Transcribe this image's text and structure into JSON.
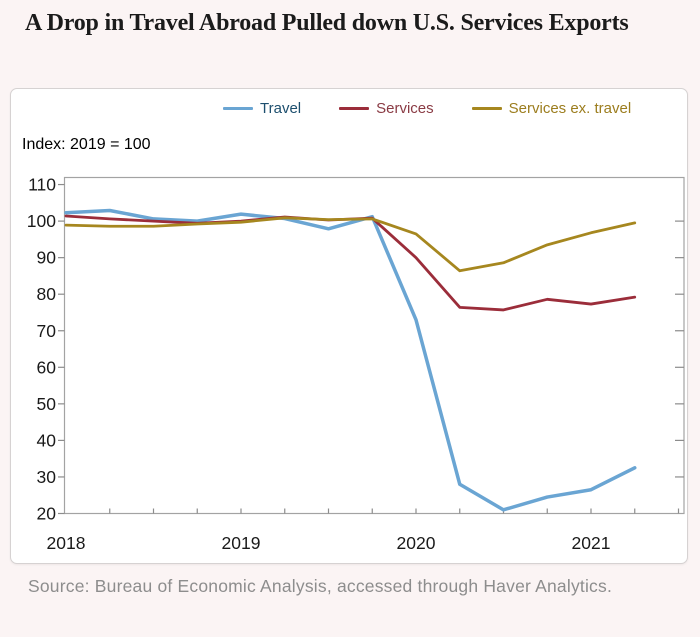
{
  "page": {
    "title": "A Drop in Travel Abroad Pulled down U.S. Services Exports",
    "source": "Source: Bureau of Economic Analysis, accessed through Haver Analytics."
  },
  "chart": {
    "index_label": "Index: 2019 = 100",
    "legend": [
      {
        "label": "Travel",
        "color": "#6aa5d3",
        "label_color": "#1d4f6e"
      },
      {
        "label": "Services",
        "color": "#9b2d3a",
        "label_color": "#8a3b44"
      },
      {
        "label": "Services ex. travel",
        "color": "#a6871f",
        "label_color": "#9c7d1e"
      }
    ]
  },
  "chart_data": {
    "type": "line",
    "title": "A Drop in Travel Abroad Pulled down U.S. Services Exports",
    "subtitle": "Index: 2019 = 100",
    "x_quarters": [
      "2018Q1",
      "2018Q2",
      "2018Q3",
      "2018Q4",
      "2019Q1",
      "2019Q2",
      "2019Q3",
      "2019Q4",
      "2020Q1",
      "2020Q2",
      "2020Q3",
      "2020Q4",
      "2021Q1",
      "2021Q2"
    ],
    "series": [
      {
        "name": "Travel",
        "color": "#6aa5d3",
        "values": [
          102.3,
          102.9,
          100.6,
          100.0,
          101.9,
          100.7,
          97.9,
          101.2,
          73.0,
          28.0,
          21.0,
          24.5,
          26.5,
          32.5
        ]
      },
      {
        "name": "Services",
        "color": "#9b2d3a",
        "values": [
          101.4,
          100.6,
          100.0,
          99.4,
          100.0,
          101.1,
          100.3,
          100.8,
          90.0,
          76.4,
          75.7,
          78.6,
          77.3,
          79.2
        ]
      },
      {
        "name": "Services ex. travel",
        "color": "#a6871f",
        "values": [
          98.9,
          98.6,
          98.6,
          99.2,
          99.7,
          100.9,
          100.4,
          100.6,
          96.5,
          86.4,
          88.6,
          93.5,
          96.8,
          99.5
        ]
      }
    ],
    "yticks": [
      20,
      30,
      40,
      50,
      60,
      70,
      80,
      90,
      100,
      110
    ],
    "ylim": [
      19,
      112
    ],
    "xticks": [
      {
        "label": "2018",
        "k": 0
      },
      {
        "label": "2019",
        "k": 4
      },
      {
        "label": "2020",
        "k": 8
      },
      {
        "label": "2021",
        "k": 12
      }
    ],
    "grid": false,
    "legend_position": "top-center"
  }
}
